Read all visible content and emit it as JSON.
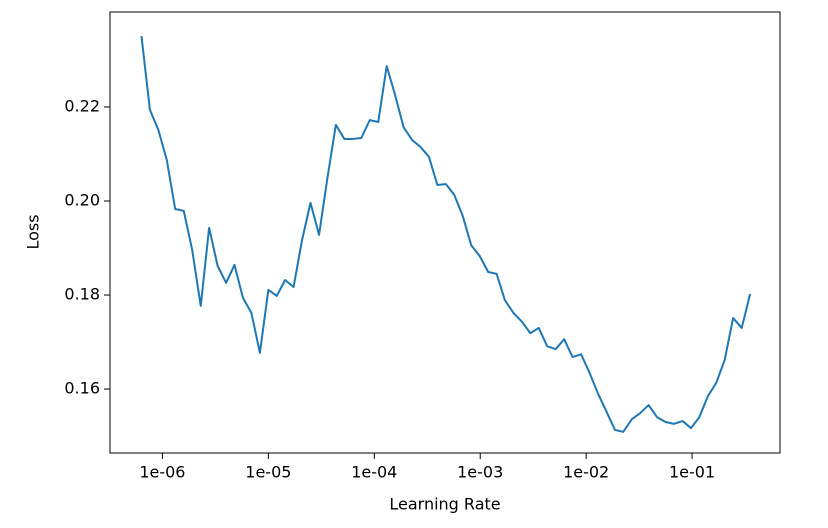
{
  "chart_data": {
    "type": "line",
    "xscale": "log",
    "xlabel": "Learning Rate",
    "ylabel": "Loss",
    "x": [
      6.34e-07,
      7.62e-07,
      9.16e-07,
      1.1e-06,
      1.32e-06,
      1.59e-06,
      1.91e-06,
      2.3e-06,
      2.76e-06,
      3.32e-06,
      3.99e-06,
      4.79e-06,
      5.76e-06,
      6.92e-06,
      8.32e-06,
      1e-05,
      1.2e-05,
      1.44e-05,
      1.73e-05,
      2.08e-05,
      2.5e-05,
      3.01e-05,
      3.61e-05,
      4.34e-05,
      5.22e-05,
      6.27e-05,
      7.54e-05,
      9.06e-05,
      0.000109,
      0.000131,
      0.000157,
      0.000189,
      0.000227,
      0.000273,
      0.000328,
      0.000394,
      0.000474,
      0.000569,
      0.000684,
      0.000822,
      0.000988,
      0.00119,
      0.00143,
      0.00171,
      0.00206,
      0.00248,
      0.00297,
      0.00357,
      0.00429,
      0.00516,
      0.0062,
      0.00745,
      0.00896,
      0.0108,
      0.0129,
      0.0155,
      0.0187,
      0.0224,
      0.027,
      0.0324,
      0.0389,
      0.0468,
      0.0562,
      0.0676,
      0.0812,
      0.0976,
      0.117,
      0.141,
      0.169,
      0.203,
      0.244,
      0.294,
      0.353
    ],
    "series": [
      {
        "color": "#1f77b4",
        "values": [
          0.2351,
          0.2194,
          0.2151,
          0.2087,
          0.1983,
          0.1979,
          0.1896,
          0.1777,
          0.1943,
          0.1862,
          0.1826,
          0.1864,
          0.1794,
          0.1762,
          0.1677,
          0.1811,
          0.1798,
          0.1832,
          0.1817,
          0.1917,
          0.1996,
          0.1928,
          0.2049,
          0.2162,
          0.2132,
          0.2132,
          0.2134,
          0.2172,
          0.2168,
          0.2287,
          0.2226,
          0.2157,
          0.213,
          0.2115,
          0.2094,
          0.2034,
          0.2036,
          0.2013,
          0.1968,
          0.1906,
          0.1883,
          0.1849,
          0.1845,
          0.1789,
          0.1762,
          0.1743,
          0.1719,
          0.173,
          0.1691,
          0.1685,
          0.1706,
          0.1668,
          0.1674,
          0.1634,
          0.1591,
          0.1553,
          0.1513,
          0.1509,
          0.1536,
          0.1549,
          0.1566,
          0.154,
          0.153,
          0.1526,
          0.1532,
          0.1517,
          0.154,
          0.1585,
          0.1613,
          0.1662,
          0.1751,
          0.173,
          0.1802
        ]
      }
    ],
    "xlim": [
      3.2e-07,
      0.676
    ],
    "xticks": [
      {
        "value": 1e-06,
        "label": "1e-06"
      },
      {
        "value": 1e-05,
        "label": "1e-05"
      },
      {
        "value": 0.0001,
        "label": "1e-04"
      },
      {
        "value": 0.001,
        "label": "1e-03"
      },
      {
        "value": 0.01,
        "label": "1e-02"
      },
      {
        "value": 0.1,
        "label": "1e-01"
      }
    ],
    "ylim": [
      0.1464,
      0.2402
    ],
    "yticks": [
      0.16,
      0.18,
      {
        "value": 0.2,
        "label": "0.20"
      },
      0.22
    ],
    "grid": false
  }
}
